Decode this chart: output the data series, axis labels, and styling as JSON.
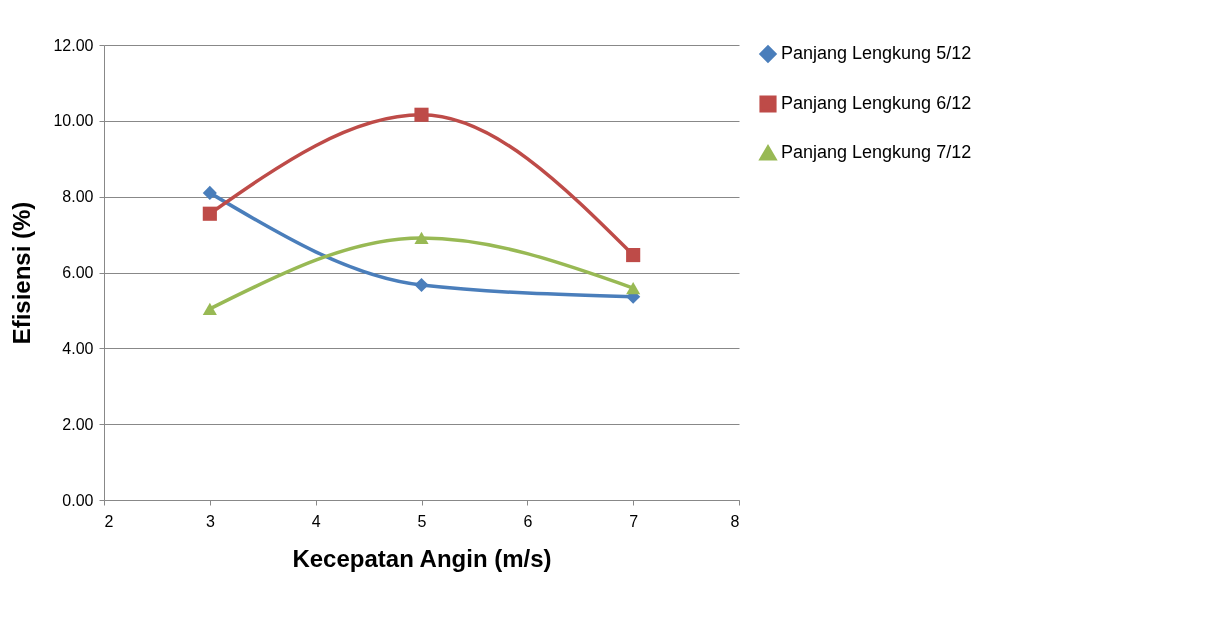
{
  "chart_data": {
    "type": "line",
    "xlabel": "Kecepatan Angin (m/s)",
    "ylabel": "Efisiensi (%)",
    "x": [
      3,
      5,
      7
    ],
    "series": [
      {
        "name": "Panjang Lengkung 5/12",
        "color": "#4a7ebb",
        "marker": "diamond",
        "values": [
          8.1,
          5.67,
          5.36
        ]
      },
      {
        "name": "Panjang Lengkung 6/12",
        "color": "#be4b48",
        "marker": "square",
        "values": [
          7.55,
          10.16,
          6.46
        ]
      },
      {
        "name": "Panjang Lengkung 7/12",
        "color": "#98b954",
        "marker": "triangle",
        "values": [
          5.04,
          6.91,
          5.59
        ]
      }
    ],
    "xlim": [
      2,
      8
    ],
    "xticks": [
      2,
      3,
      4,
      5,
      6,
      7,
      8
    ],
    "ylim": [
      0,
      12
    ],
    "yticks": [
      {
        "value": 0,
        "label": "0.00"
      },
      {
        "value": 2,
        "label": "2.00"
      },
      {
        "value": 4,
        "label": "4.00"
      },
      {
        "value": 6,
        "label": "6.00"
      },
      {
        "value": 8,
        "label": "8.00"
      },
      {
        "value": 10,
        "label": "10.00"
      },
      {
        "value": 12,
        "label": "12.00"
      }
    ],
    "grid": "y",
    "legend": "right",
    "line_style": "solid"
  }
}
